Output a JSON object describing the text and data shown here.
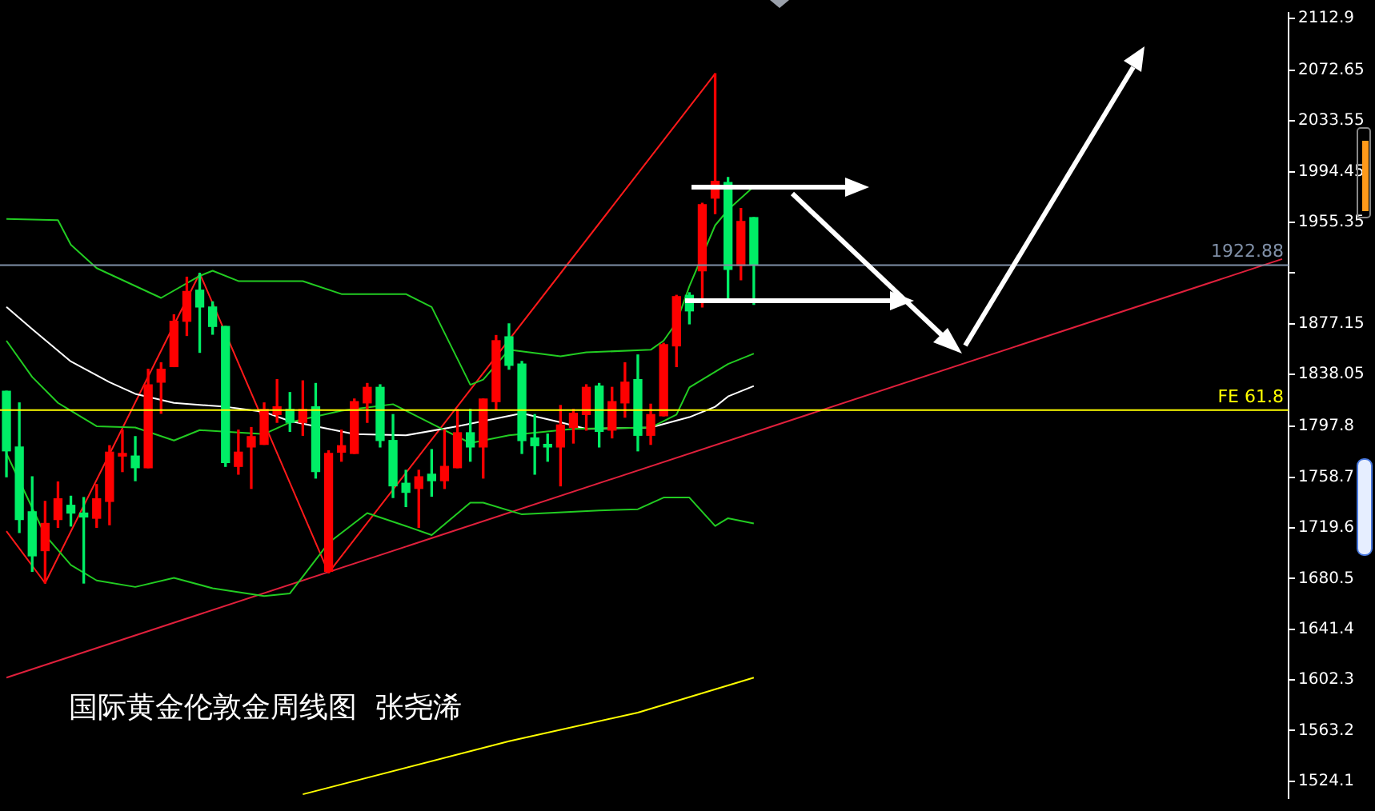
{
  "chart_data": {
    "type": "candlestick",
    "categories": [
      null,
      null,
      null,
      null,
      null,
      null,
      null,
      null,
      null,
      null,
      null,
      null,
      null,
      null,
      null,
      null,
      null,
      null,
      null,
      null,
      null,
      null,
      null,
      null,
      null,
      null,
      null,
      null,
      null,
      null,
      null,
      null,
      null,
      null,
      null,
      null,
      null,
      null,
      null,
      null,
      null,
      null,
      null,
      null,
      null,
      null,
      null,
      null,
      null,
      null,
      null,
      null,
      null,
      null,
      null,
      null,
      null,
      null,
      null,
      null,
      null,
      null,
      null,
      null,
      null,
      null,
      null,
      null,
      null,
      null,
      null,
      null,
      null,
      null,
      null,
      null,
      null,
      null,
      null,
      null,
      null,
      null,
      null,
      null,
      null,
      null,
      null,
      null,
      null,
      null,
      null,
      null,
      null,
      null,
      null,
      null,
      null,
      null,
      null,
      null
    ],
    "ohlc": [
      [
        1779,
        1825,
        1759,
        1825
      ],
      [
        1726,
        1816,
        1716,
        1782
      ],
      [
        1698,
        1759,
        1686,
        1732
      ],
      [
        1723,
        1740,
        1677,
        1702
      ],
      [
        1742,
        1755,
        1720,
        1726
      ],
      [
        1731,
        1744,
        1721,
        1737
      ],
      [
        1728,
        1743,
        1677,
        1731
      ],
      [
        1742,
        1753,
        1720,
        1727
      ],
      [
        1778,
        1783,
        1722,
        1740
      ],
      [
        1777,
        1795,
        1763,
        1775
      ],
      [
        1766,
        1790,
        1756,
        1775
      ],
      [
        1830,
        1842,
        1766,
        1766
      ],
      [
        1842,
        1847,
        1808,
        1832
      ],
      [
        1879,
        1884,
        1844,
        1844
      ],
      [
        1902,
        1913,
        1868,
        1879
      ],
      [
        1890,
        1916,
        1855,
        1903
      ],
      [
        1875,
        1894,
        1869,
        1890
      ],
      [
        1770,
        1875,
        1767,
        1875
      ],
      [
        1778,
        1795,
        1761,
        1767
      ],
      [
        1790,
        1797,
        1750,
        1782
      ],
      [
        1811,
        1816,
        1784,
        1784
      ],
      [
        1813,
        1834,
        1801,
        1807
      ],
      [
        1801,
        1824,
        1794,
        1811
      ],
      [
        1811,
        1833,
        1791,
        1801
      ],
      [
        1763,
        1831,
        1758,
        1813
      ],
      [
        1777,
        1779,
        1685,
        1686
      ],
      [
        1783,
        1795,
        1771,
        1778
      ],
      [
        1817,
        1819,
        1777,
        1777
      ],
      [
        1828,
        1831,
        1801,
        1816
      ],
      [
        1787,
        1830,
        1782,
        1828
      ],
      [
        1752,
        1807,
        1743,
        1787
      ],
      [
        1747,
        1764,
        1736,
        1754
      ],
      [
        1759,
        1764,
        1720,
        1750
      ],
      [
        1756,
        1780,
        1744,
        1761
      ],
      [
        1767,
        1795,
        1750,
        1756
      ],
      [
        1793,
        1811,
        1766,
        1766
      ],
      [
        1782,
        1811,
        1771,
        1793
      ],
      [
        1819,
        1819,
        1758,
        1782
      ],
      [
        1864,
        1868,
        1811,
        1817
      ],
      [
        1845,
        1877,
        1842,
        1867
      ],
      [
        1787,
        1848,
        1777,
        1846
      ],
      [
        1783,
        1807,
        1761,
        1789
      ],
      [
        1782,
        1792,
        1771,
        1784
      ],
      [
        1799,
        1814,
        1752,
        1782
      ],
      [
        1808,
        1811,
        1785,
        1797
      ],
      [
        1828,
        1830,
        1795,
        1807
      ],
      [
        1794,
        1831,
        1782,
        1829
      ],
      [
        1817,
        1828,
        1789,
        1795
      ],
      [
        1832,
        1847,
        1805,
        1816
      ],
      [
        1791,
        1853,
        1779,
        1834
      ],
      [
        1807,
        1815,
        1784,
        1791
      ],
      [
        1861,
        1862,
        1806,
        1806
      ],
      [
        1898,
        1899,
        1844,
        1860
      ],
      [
        1887,
        1901,
        1877,
        1899
      ],
      [
        1969,
        1970,
        1890,
        1918
      ],
      [
        1987,
        2070,
        1962,
        1974
      ],
      [
        1919,
        1990,
        1894,
        1986
      ],
      [
        1956,
        1966,
        1911,
        1922
      ],
      [
        1923,
        1959,
        1892,
        1959
      ],
      null,
      null,
      null,
      null,
      null,
      null,
      null,
      null,
      null,
      null,
      null,
      null,
      null,
      null,
      null,
      null,
      null,
      null,
      null,
      null,
      null,
      null,
      null,
      null,
      null,
      null,
      null,
      null,
      null,
      null,
      null,
      null,
      null,
      null,
      null,
      null,
      null,
      null,
      null,
      null,
      null
    ],
    "colors": [
      "#00ee66",
      "#00ee66",
      "#00ee66",
      "#ff0000",
      "#ff0000",
      "#00ee66",
      "#00ee66",
      "#ff0000",
      "#ff0000",
      "#ff0000",
      "#00ee66",
      "#ff0000",
      "#ff0000",
      "#ff0000",
      "#ff0000",
      "#00ee66",
      "#00ee66",
      "#00ee66",
      "#ff0000",
      "#ff0000",
      "#ff0000",
      "#ff0000",
      "#00ee66",
      "#ff0000",
      "#00ee66",
      "#ff0000",
      "#ff0000",
      "#ff0000",
      "#ff0000",
      "#00ee66",
      "#00ee66",
      "#00ee66",
      "#ff0000",
      "#00ee66",
      "#ff0000",
      "#ff0000",
      "#00ee66",
      "#ff0000",
      "#ff0000",
      "#00ee66",
      "#00ee66",
      "#00ee66",
      "#00ee66",
      "#ff0000",
      "#ff0000",
      "#ff0000",
      "#00ee66",
      "#ff0000",
      "#ff0000",
      "#00ee66",
      "#ff0000",
      "#ff0000",
      "#ff0000",
      "#00ee66",
      "#ff0000",
      "#ff0000",
      "#00ee66",
      "#ff0000",
      "#00ee66",
      null,
      null,
      null,
      null,
      null,
      null,
      null,
      null,
      null,
      null,
      null,
      null,
      null,
      null,
      null,
      null,
      null,
      null,
      null,
      null,
      null,
      null,
      null,
      null,
      null,
      null,
      null,
      null,
      null,
      null,
      null,
      null,
      null,
      null,
      null,
      null,
      null,
      null,
      null,
      null,
      null
    ],
    "series": [
      {
        "type": "line",
        "color": "#22cc22",
        "values": [
          1958,
          null,
          null,
          null,
          1957,
          1938,
          null,
          1920,
          null,
          null,
          null,
          null,
          1897,
          null,
          null,
          1914,
          1918,
          null,
          1910,
          null,
          null,
          null,
          null,
          1910,
          null,
          null,
          1900,
          null,
          null,
          null,
          null,
          1900,
          null,
          1890,
          null,
          null,
          1830,
          1834,
          null,
          1857,
          null,
          null,
          null,
          1852,
          null,
          1855,
          null,
          null,
          null,
          null,
          1857,
          1864,
          1878,
          1906,
          null,
          1953,
          1965,
          null,
          1983,
          null,
          null,
          null,
          null,
          null,
          null,
          null,
          null,
          null,
          null,
          null,
          null,
          null,
          null,
          null,
          null,
          null,
          null,
          null,
          null,
          null,
          null,
          null,
          null,
          null,
          null,
          null,
          null,
          null,
          null,
          null,
          null,
          null,
          null,
          null,
          null,
          null,
          null,
          null,
          null,
          null
        ]
      },
      {
        "type": "line",
        "color": "#22cc22",
        "values": [
          1864,
          null,
          1836,
          null,
          1816,
          null,
          null,
          1798,
          null,
          null,
          1797,
          null,
          null,
          1787,
          null,
          1795,
          null,
          null,
          null,
          null,
          1792,
          null,
          1801,
          null,
          null,
          null,
          1810,
          null,
          null,
          null,
          1815,
          null,
          1805,
          null,
          1795,
          null,
          1785,
          null,
          null,
          1791,
          null,
          null,
          null,
          null,
          1796,
          null,
          null,
          null,
          null,
          null,
          1797,
          null,
          1807,
          1828,
          null,
          null,
          1846,
          null,
          1854,
          null,
          null,
          null,
          null,
          null,
          null,
          null,
          null,
          null,
          null,
          null,
          null,
          null,
          null,
          null,
          null,
          null,
          null,
          null,
          null,
          null,
          null,
          null,
          null,
          null,
          null,
          null,
          null,
          null,
          null,
          null,
          null,
          null,
          null,
          null,
          null,
          null,
          null,
          null,
          null,
          null
        ]
      },
      {
        "type": "line",
        "color": "#22cc22",
        "values": [
          1777,
          null,
          null,
          1714,
          null,
          1691,
          null,
          1679,
          null,
          null,
          1674,
          null,
          null,
          1681,
          null,
          null,
          1673,
          null,
          null,
          null,
          1667,
          null,
          1669,
          null,
          null,
          1708,
          null,
          null,
          1731,
          null,
          null,
          1721,
          null,
          1714,
          null,
          null,
          1739,
          1739,
          null,
          null,
          1730,
          null,
          null,
          null,
          null,
          null,
          1733,
          null,
          null,
          1734,
          null,
          1743,
          null,
          1743,
          null,
          1721,
          1727,
          null,
          1723,
          null,
          null,
          null,
          null,
          null,
          null,
          null,
          null,
          null,
          null,
          null,
          null,
          null,
          null,
          null,
          null,
          null,
          null,
          null,
          null,
          null,
          null,
          null,
          null,
          null,
          null,
          null,
          null,
          null,
          null,
          null,
          null,
          null,
          null,
          null,
          null,
          null,
          null,
          null,
          null,
          null
        ]
      },
      {
        "type": "line",
        "color": "#ffffff",
        "values": [
          1890,
          null,
          1873,
          null,
          null,
          1848,
          null,
          null,
          1832,
          null,
          1823,
          null,
          null,
          1816,
          null,
          null,
          null,
          1813,
          null,
          null,
          1809,
          null,
          1802,
          null,
          null,
          null,
          null,
          1792,
          null,
          null,
          null,
          1791,
          null,
          null,
          null,
          1798,
          null,
          null,
          null,
          null,
          1808,
          null,
          null,
          1801,
          null,
          1796,
          null,
          null,
          null,
          null,
          1797,
          null,
          null,
          1805,
          null,
          1813,
          1821,
          null,
          1829,
          null,
          null,
          null,
          null,
          null,
          null,
          null,
          null,
          null,
          null,
          null,
          null,
          null,
          null,
          null,
          null,
          null,
          null,
          null,
          null,
          null,
          null,
          null,
          null,
          null,
          null,
          null,
          null,
          null,
          null,
          null,
          null,
          null,
          null,
          null,
          null,
          null,
          null,
          null,
          null,
          null
        ]
      },
      {
        "type": "line",
        "color": "#ffff00",
        "values": [
          null,
          null,
          null,
          null,
          null,
          null,
          null,
          null,
          null,
          null,
          null,
          null,
          null,
          null,
          null,
          null,
          null,
          null,
          null,
          null,
          null,
          null,
          null,
          1514,
          null,
          null,
          null,
          null,
          null,
          null,
          null,
          null,
          null,
          null,
          null,
          null,
          null,
          null,
          null,
          1555,
          null,
          null,
          null,
          null,
          null,
          null,
          null,
          null,
          null,
          1577,
          null,
          null,
          null,
          null,
          null,
          null,
          null,
          null,
          1604,
          null,
          null,
          null,
          null,
          null,
          null,
          null,
          null,
          null,
          null,
          null,
          null,
          null,
          null,
          null,
          null,
          null,
          null,
          null,
          null,
          null,
          null,
          null,
          null,
          null,
          null,
          null,
          null,
          null,
          null,
          null,
          null,
          null,
          null,
          null,
          null,
          null,
          null,
          null,
          null,
          null
        ]
      },
      {
        "type": "line",
        "color": "#ff1a1a",
        "values": [
          1717,
          null,
          null,
          1677,
          null,
          null,
          null,
          null,
          null,
          null,
          null,
          null,
          null,
          null,
          null,
          1916,
          null,
          null,
          null,
          null,
          null,
          null,
          null,
          null,
          null,
          1685,
          null,
          null,
          null,
          null,
          null,
          null,
          null,
          null,
          null,
          null,
          null,
          null,
          null,
          null,
          null,
          null,
          null,
          null,
          null,
          null,
          null,
          null,
          null,
          null,
          null,
          null,
          null,
          null,
          null,
          2070,
          null,
          null,
          null,
          null,
          null,
          null,
          null,
          null,
          null,
          null,
          null,
          null,
          null,
          null,
          null,
          null,
          null,
          null,
          null,
          null,
          null,
          null,
          null,
          null,
          null,
          null,
          null,
          null,
          null,
          null,
          null,
          null,
          null,
          null,
          null,
          null,
          null,
          null,
          null,
          null,
          null,
          null,
          null,
          null
        ]
      },
      {
        "type": "line",
        "color": "#e0203c",
        "values": [
          1604,
          null,
          null,
          null,
          null,
          null,
          null,
          null,
          null,
          null,
          null,
          null,
          null,
          null,
          null,
          null,
          null,
          null,
          null,
          null,
          null,
          null,
          null,
          null,
          null,
          null,
          null,
          null,
          null,
          null,
          null,
          null,
          null,
          null,
          null,
          null,
          null,
          null,
          null,
          null,
          null,
          null,
          null,
          null,
          null,
          null,
          null,
          null,
          null,
          null,
          null,
          null,
          null,
          null,
          null,
          null,
          null,
          null,
          null,
          null,
          null,
          null,
          null,
          null,
          null,
          null,
          null,
          null,
          null,
          null,
          null,
          null,
          null,
          null,
          null,
          null,
          null,
          null,
          null,
          null,
          null,
          null,
          null,
          null,
          null,
          null,
          null,
          null,
          null,
          null,
          null,
          null,
          null,
          null,
          null,
          null,
          null,
          null,
          null,
          1927
        ]
      }
    ],
    "ylim": [
      1511,
      2117
    ],
    "yticks": [
      2112.9,
      2072.65,
      2033.55,
      1994.45,
      1955.35,
      {
        "value": 1916.25,
        "label": null
      },
      1877.15,
      1838.05,
      1797.8,
      1758.7,
      1719.6,
      1680.5,
      1641.4,
      1602.3,
      1563.2,
      1524.1
    ],
    "tick_labels": "y",
    "ref_lines": [
      {
        "axis": "y",
        "value": 1922.88,
        "label": "1922.88",
        "color": "#8090a8"
      },
      {
        "axis": "y",
        "value": 1811,
        "label": "FE 61.8",
        "color": "#ffff00"
      }
    ],
    "annotations": [
      "国际黄金伦敦金周线图  张尧浠"
    ]
  }
}
